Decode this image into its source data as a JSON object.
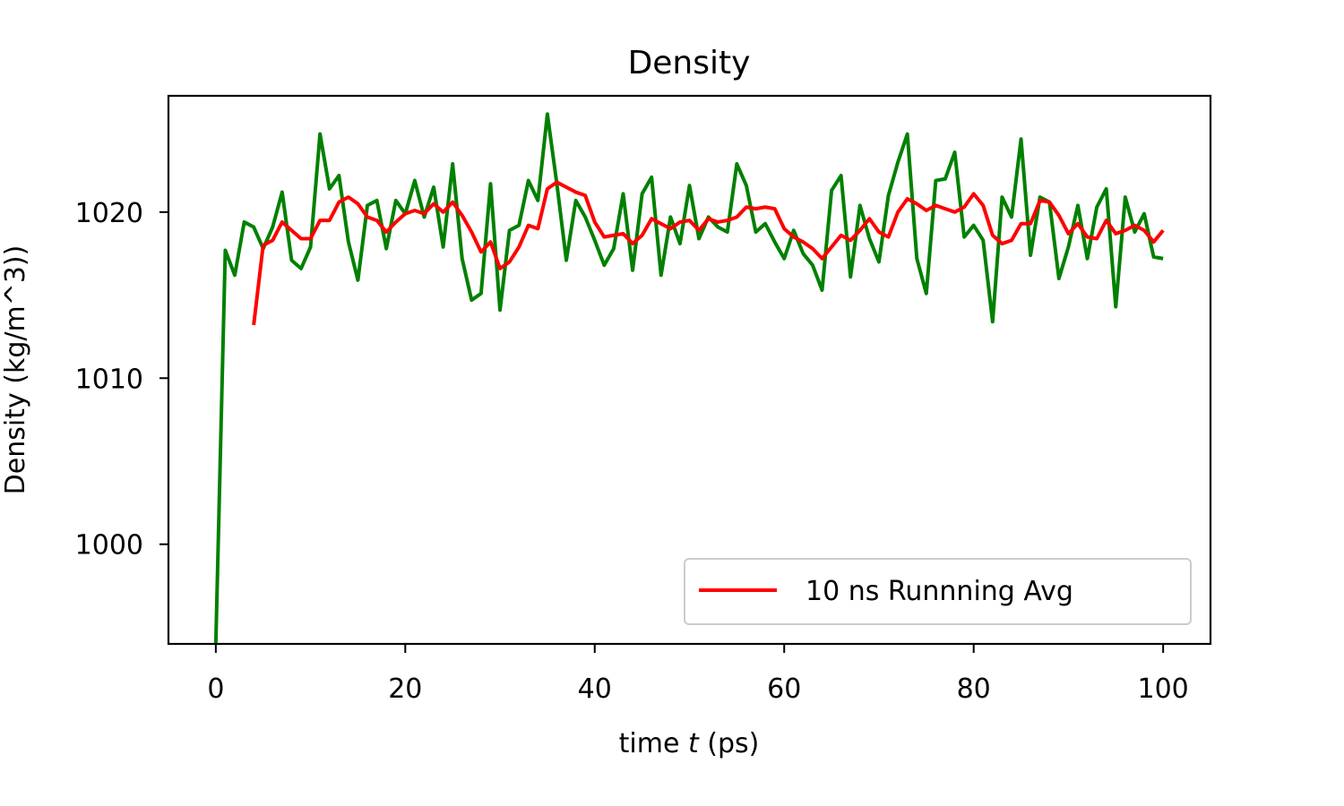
{
  "chart_data": {
    "type": "line",
    "title": "Density",
    "xlabel_prefix": "time ",
    "xlabel_var": "t",
    "xlabel_suffix": " (ps)",
    "ylabel": "Density (kg/m^3))",
    "xlim": [
      -5,
      105
    ],
    "ylim": [
      994,
      1027
    ],
    "xticks": [
      0,
      20,
      40,
      60,
      80,
      100
    ],
    "yticks": [
      1000,
      1010,
      1020
    ],
    "grid": false,
    "legend_position": "lower-right",
    "series": [
      {
        "color": "#008000",
        "x": [
          0,
          1,
          2,
          3,
          4,
          5,
          6,
          7,
          8,
          9,
          10,
          11,
          12,
          13,
          14,
          15,
          16,
          17,
          18,
          19,
          20,
          21,
          22,
          23,
          24,
          25,
          26,
          27,
          28,
          29,
          30,
          31,
          32,
          33,
          34,
          35,
          36,
          37,
          38,
          39,
          40,
          41,
          42,
          43,
          44,
          45,
          46,
          47,
          48,
          49,
          50,
          51,
          52,
          53,
          54,
          55,
          56,
          57,
          58,
          59,
          60,
          61,
          62,
          63,
          64,
          65,
          66,
          67,
          68,
          69,
          70,
          71,
          72,
          73,
          74,
          75,
          76,
          77,
          78,
          79,
          80,
          81,
          82,
          83,
          84,
          85,
          86,
          87,
          88,
          89,
          90,
          91,
          92,
          93,
          94,
          95,
          96,
          97,
          98,
          99,
          100
        ],
        "values": [
          994,
          1017.7,
          1016.2,
          1019.4,
          1019.1,
          1017.8,
          1019.1,
          1021.2,
          1017.1,
          1016.6,
          1017.9,
          1024.7,
          1021.4,
          1022.2,
          1018.2,
          1015.9,
          1020.4,
          1020.7,
          1017.8,
          1020.7,
          1019.9,
          1021.9,
          1019.7,
          1021.5,
          1017.9,
          1022.9,
          1017.2,
          1014.7,
          1015.1,
          1021.7,
          1014.1,
          1018.9,
          1019.2,
          1021.9,
          1020.7,
          1025.9,
          1021.7,
          1017.1,
          1020.7,
          1019.7,
          1018.3,
          1016.8,
          1017.8,
          1021.1,
          1016.5,
          1021.1,
          1022.1,
          1016.2,
          1019.7,
          1018.1,
          1021.6,
          1018.4,
          1019.7,
          1019.1,
          1018.8,
          1022.9,
          1021.6,
          1018.8,
          1019.3,
          1018.2,
          1017.2,
          1018.9,
          1017.5,
          1016.8,
          1015.3,
          1021.3,
          1022.2,
          1016.1,
          1020.4,
          1018.4,
          1017.0,
          1021.0,
          1023.0,
          1024.7,
          1017.2,
          1015.1,
          1021.9,
          1022.0,
          1023.6,
          1018.5,
          1019.2,
          1018.3,
          1013.4,
          1020.9,
          1019.7,
          1024.4,
          1017.4,
          1020.9,
          1020.6,
          1016.0,
          1017.9,
          1020.4,
          1017.2,
          1020.3,
          1021.4,
          1014.3,
          1020.9,
          1018.8,
          1019.9,
          1017.3,
          1017.2
        ]
      },
      {
        "name": "10 ns Runnning Avg",
        "color": "#ff0000",
        "x": [
          4,
          5,
          6,
          7,
          8,
          9,
          10,
          11,
          12,
          13,
          14,
          15,
          16,
          17,
          18,
          19,
          20,
          21,
          22,
          23,
          24,
          25,
          26,
          27,
          28,
          29,
          30,
          31,
          32,
          33,
          34,
          35,
          36,
          37,
          38,
          39,
          40,
          41,
          42,
          43,
          44,
          45,
          46,
          47,
          48,
          49,
          50,
          51,
          52,
          53,
          54,
          55,
          56,
          57,
          58,
          59,
          60,
          61,
          62,
          63,
          64,
          65,
          66,
          67,
          68,
          69,
          70,
          71,
          72,
          73,
          74,
          75,
          76,
          77,
          78,
          79,
          80,
          81,
          82,
          83,
          84,
          85,
          86,
          87,
          88,
          89,
          90,
          91,
          92,
          93,
          94,
          95,
          96,
          97,
          98,
          99,
          100
        ],
        "values": [
          1013.2,
          1018.0,
          1018.3,
          1019.4,
          1018.9,
          1018.4,
          1018.4,
          1019.5,
          1019.5,
          1020.6,
          1020.9,
          1020.5,
          1019.7,
          1019.5,
          1018.8,
          1019.4,
          1019.9,
          1020.1,
          1019.9,
          1020.5,
          1020.0,
          1020.6,
          1019.8,
          1018.8,
          1017.6,
          1018.2,
          1016.6,
          1017.0,
          1017.9,
          1019.2,
          1019.0,
          1021.4,
          1021.8,
          1021.5,
          1021.2,
          1021.0,
          1019.4,
          1018.5,
          1018.6,
          1018.7,
          1018.1,
          1018.6,
          1019.6,
          1019.3,
          1019.0,
          1019.4,
          1019.5,
          1018.9,
          1019.6,
          1019.4,
          1019.5,
          1019.7,
          1020.3,
          1020.2,
          1020.3,
          1020.2,
          1019.0,
          1018.5,
          1018.2,
          1017.8,
          1017.2,
          1017.9,
          1018.6,
          1018.3,
          1018.9,
          1019.6,
          1018.8,
          1018.5,
          1020.0,
          1020.8,
          1020.5,
          1020.1,
          1020.4,
          1020.2,
          1020.0,
          1020.3,
          1021.1,
          1020.4,
          1018.6,
          1018.1,
          1018.3,
          1019.3,
          1019.3,
          1020.7,
          1020.6,
          1019.8,
          1018.7,
          1019.3,
          1018.5,
          1018.4,
          1019.5,
          1018.7,
          1018.9,
          1019.2,
          1018.9,
          1018.2,
          1018.9
        ]
      }
    ]
  }
}
